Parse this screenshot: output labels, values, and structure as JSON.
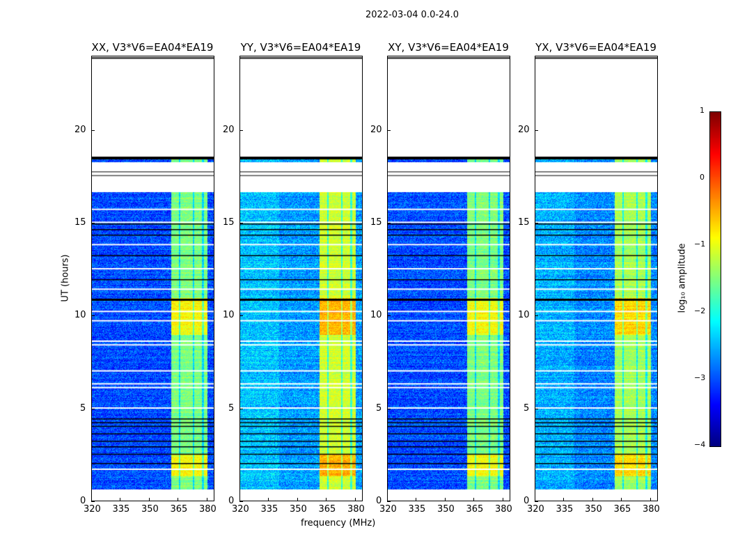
{
  "chart_data": {
    "type": "heatmap",
    "title": "2022-03-04 0.0-24.0",
    "xlabel": "frequency (MHz)",
    "ylabel": "UT (hours)",
    "xlim": [
      320,
      384
    ],
    "ylim": [
      0,
      24
    ],
    "xticks": [
      320,
      335,
      350,
      365,
      380
    ],
    "yticks": [
      0,
      5,
      10,
      15,
      20
    ],
    "panels": [
      {
        "title": "XX, V3*V6=EA04*EA19",
        "offband_level": -3.0,
        "band_level": -1.5
      },
      {
        "title": "YY, V3*V6=EA04*EA19",
        "offband_level": -2.6,
        "band_level": -1.1
      },
      {
        "title": "XY, V3*V6=EA04*EA19",
        "offband_level": -3.0,
        "band_level": -1.5
      },
      {
        "title": "YX, V3*V6=EA04*EA19",
        "offband_level": -2.7,
        "band_level": -1.3
      }
    ],
    "data_time_range_hours": [
      0.7,
      16.7
    ],
    "extra_data_strip_hours": [
      18.3,
      18.5
    ],
    "bright_band_mhz": [
      361,
      380
    ],
    "flagged_white_gaps_hours": [
      1.8,
      5.1,
      6.2,
      6.4,
      7.1,
      8.5,
      8.7,
      9.8,
      10.3,
      11.5,
      12.6,
      13.9,
      15.1,
      15.8
    ],
    "flagged_black_lines_hours": [
      2.1,
      2.6,
      3.0,
      3.3,
      3.7,
      4.1,
      4.3,
      4.5,
      10.95,
      12.0,
      13.3,
      14.4,
      14.7,
      15.0
    ],
    "colorbar": {
      "label": "log₁₀ amplitude",
      "range": [
        -4,
        1
      ],
      "ticks": [
        "−4",
        "−3",
        "−2",
        "−1",
        "0",
        "1"
      ],
      "colormap": "jet"
    }
  }
}
